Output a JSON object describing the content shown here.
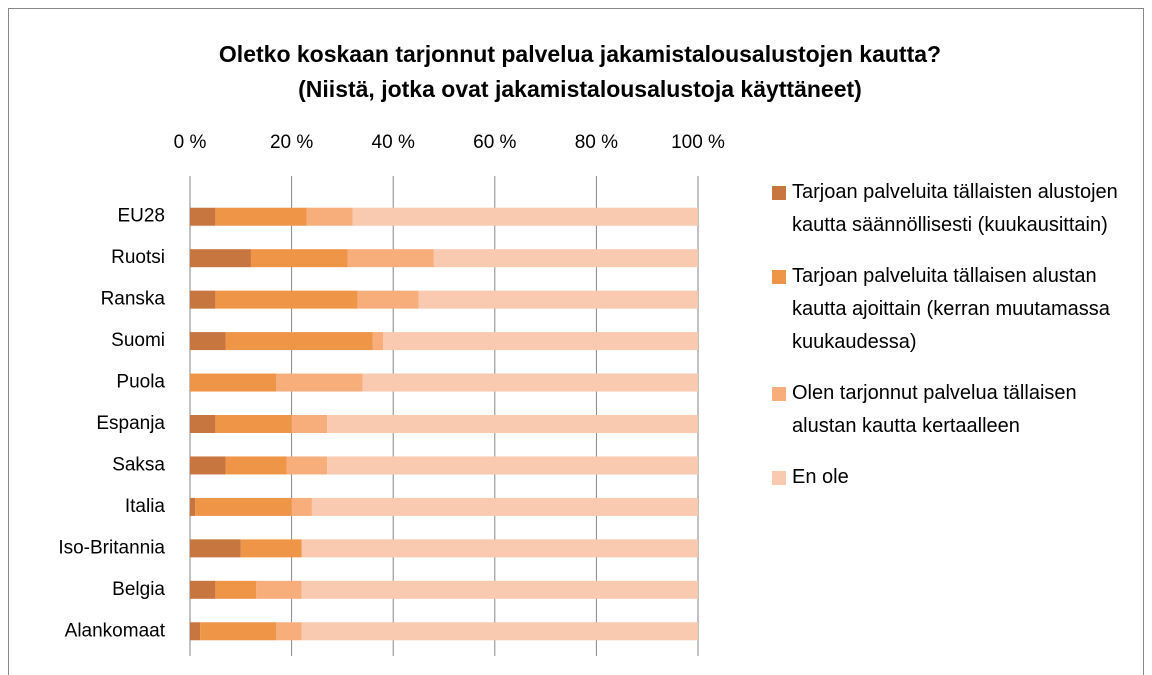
{
  "chart_data": {
    "type": "stacked_barh",
    "title": "Oletko koskaan tarjonnut palvelua jakamistalousalustojen kautta?",
    "subtitle": "(Niistä, jotka ovat jakamistalousalustoja käyttäneet)",
    "categories": [
      "EU28",
      "Ruotsi",
      "Ranska",
      "Suomi",
      "Puola",
      "Espanja",
      "Saksa",
      "Italia",
      "Iso-Britannia",
      "Belgia",
      "Alankomaat"
    ],
    "series": [
      {
        "name": "Tarjoan palveluita tällaisten alustojen kautta säännöllisesti (kuukausittain)",
        "color": "#c8763f",
        "values": [
          5,
          12,
          5,
          7,
          0,
          5,
          7,
          1,
          10,
          5,
          2
        ]
      },
      {
        "name": "Tarjoan palveluita tällaisen alustan kautta ajoittain (kerran muutamassa kuukaudessa)",
        "color": "#ef9548",
        "values": [
          18,
          19,
          28,
          29,
          17,
          15,
          12,
          19,
          12,
          8,
          15
        ]
      },
      {
        "name": "Olen tarjonnut palvelua tällaisen alustan kautta kertaalleen",
        "color": "#f7ae7a",
        "values": [
          9,
          17,
          12,
          2,
          17,
          7,
          8,
          4,
          0,
          9,
          5
        ]
      },
      {
        "name": "En ole",
        "color": "#f9c9b0",
        "values": [
          68,
          52,
          55,
          62,
          66,
          73,
          73,
          76,
          78,
          78,
          78
        ]
      }
    ],
    "xlim": [
      0,
      100
    ],
    "xticks": [
      {
        "value": 0,
        "label": "0 %"
      },
      {
        "value": 20,
        "label": "20 %"
      },
      {
        "value": 40,
        "label": "40 %"
      },
      {
        "value": 60,
        "label": "60 %"
      },
      {
        "value": 80,
        "label": "80 %"
      },
      {
        "value": 100,
        "label": "100 %"
      }
    ],
    "grid": true,
    "legend": "right"
  }
}
